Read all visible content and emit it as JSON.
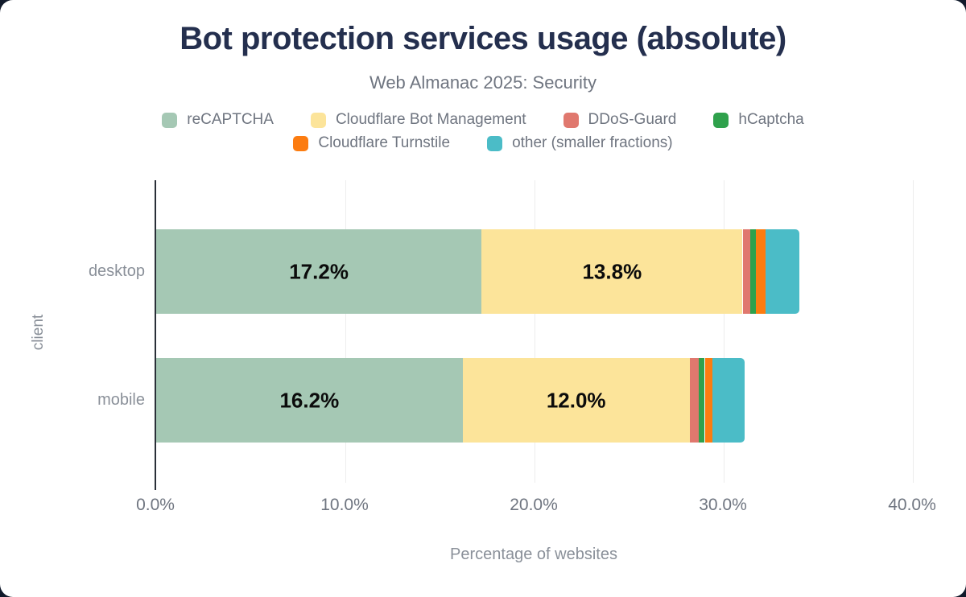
{
  "header": {
    "title": "Bot protection services usage (absolute)",
    "subtitle": "Web Almanac 2025: Security"
  },
  "legend": {
    "rows": [
      [
        0,
        1,
        2,
        3
      ],
      [
        4,
        5
      ]
    ]
  },
  "axes": {
    "xlabel": "Percentage of websites",
    "ylabel": "client",
    "category_labels": [
      "desktop",
      "mobile"
    ]
  },
  "colors": {
    "title": "#242f4e",
    "subtitle_text": "#6f7580",
    "axis_line": "#2a2f38",
    "gridline": "#ededed",
    "bar_value_text": "#0b0b0b"
  },
  "chart_data": {
    "type": "bar",
    "stacked": true,
    "orientation": "horizontal",
    "title": "Bot protection services usage (absolute)",
    "subtitle": "Web Almanac 2025: Security",
    "categories": [
      "desktop",
      "mobile"
    ],
    "series": [
      {
        "name": "reCAPTCHA",
        "color": "#a5c8b4",
        "values": [
          17.2,
          16.2
        ]
      },
      {
        "name": "Cloudflare Bot Management",
        "color": "#fce49a",
        "values": [
          13.8,
          12.0
        ]
      },
      {
        "name": "DDoS-Guard",
        "color": "#e0786e",
        "values": [
          0.4,
          0.5
        ]
      },
      {
        "name": "hCaptcha",
        "color": "#2fa14c",
        "values": [
          0.3,
          0.3
        ]
      },
      {
        "name": "Cloudflare Turnstile",
        "color": "#fc7c10",
        "values": [
          0.5,
          0.4
        ]
      },
      {
        "name": "other (smaller fractions)",
        "color": "#4bbcc7",
        "values": [
          1.8,
          1.7
        ]
      }
    ],
    "data_labels": {
      "shown_for": [
        "reCAPTCHA",
        "Cloudflare Bot Management"
      ],
      "format": "#.#%",
      "values": [
        [
          "17.2%",
          "13.8%"
        ],
        [
          "16.2%",
          "12.0%"
        ]
      ]
    },
    "xlabel": "Percentage of websites",
    "ylabel": "client",
    "xlim": [
      0,
      40
    ],
    "xtick_values": [
      0,
      10,
      20,
      30,
      40
    ],
    "xtick_labels": [
      "0.0%",
      "10.0%",
      "20.0%",
      "30.0%",
      "40.0%"
    ],
    "grid": true,
    "legend_position": "top"
  }
}
